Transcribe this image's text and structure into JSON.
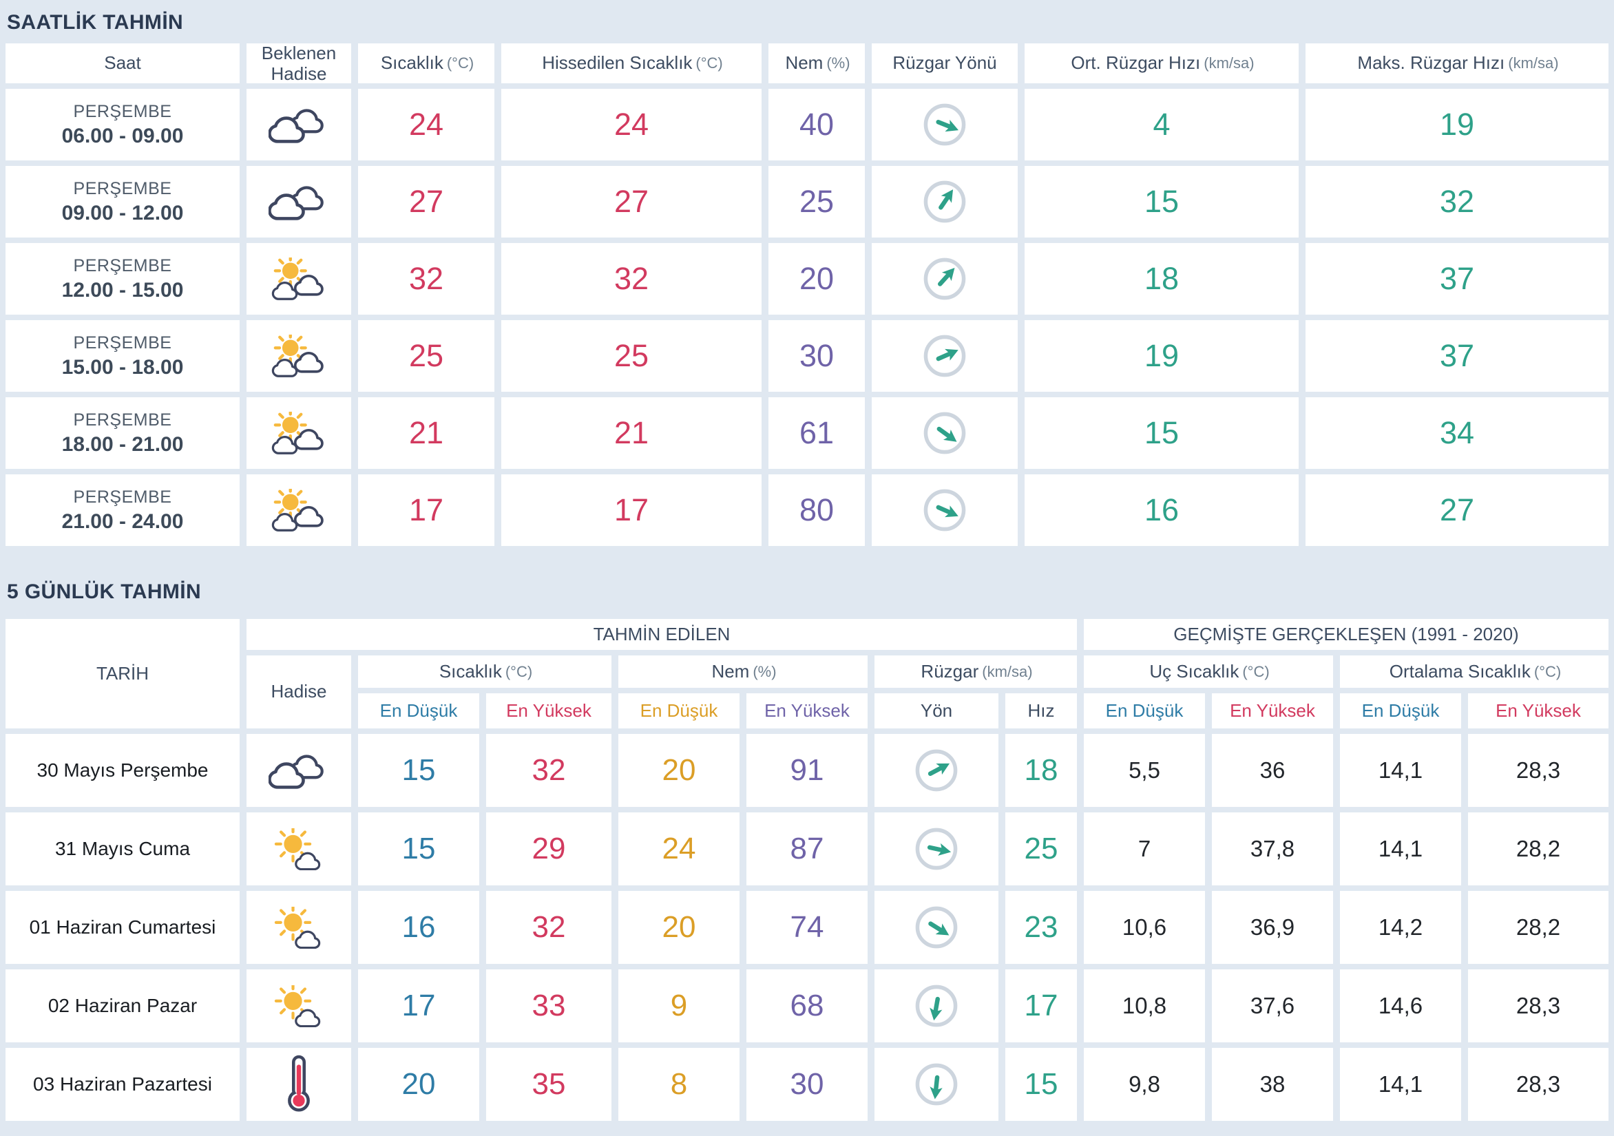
{
  "colors": {
    "background": "#e0e8f1",
    "cell": "#ffffff",
    "title_text": "#2b3a51",
    "header_text": "#3d4c61",
    "unit_text": "#70808f",
    "max_red": "#d23a5f",
    "min_blue": "#2e7ca6",
    "humidity_min_orange": "#db9e26",
    "humidity_purple": "#6f63a8",
    "wind_teal": "#2ea189",
    "icon_outline_navy": "#3e4660",
    "sun_yellow": "#f6b93d",
    "wind_circle_gray": "#cdd5de"
  },
  "hourly": {
    "title": "SAATLİK TAHMİN",
    "columns": [
      {
        "label": "Saat",
        "unit": ""
      },
      {
        "label": "Beklenen Hadise",
        "unit": ""
      },
      {
        "label": "Sıcaklık",
        "unit": "(°C)"
      },
      {
        "label": "Hissedilen Sıcaklık",
        "unit": "(°C)"
      },
      {
        "label": "Nem",
        "unit": "(%)"
      },
      {
        "label": "Rüzgar Yönü",
        "unit": ""
      },
      {
        "label": "Ort. Rüzgar Hızı",
        "unit": "(km/sa)"
      },
      {
        "label": "Maks. Rüzgar Hızı",
        "unit": "(km/sa)"
      }
    ],
    "rows": [
      {
        "day": "PERŞEMBE",
        "time": "06.00 - 09.00",
        "icon": "cloudy",
        "temp": "24",
        "feels": "24",
        "humidity": "40",
        "wind_dir_deg": 112,
        "wind_avg": "4",
        "wind_max": "19"
      },
      {
        "day": "PERŞEMBE",
        "time": "09.00 - 12.00",
        "icon": "cloudy",
        "temp": "27",
        "feels": "27",
        "humidity": "25",
        "wind_dir_deg": 34,
        "wind_avg": "15",
        "wind_max": "32"
      },
      {
        "day": "PERŞEMBE",
        "time": "12.00 - 15.00",
        "icon": "partly-cloudy",
        "temp": "32",
        "feels": "32",
        "humidity": "20",
        "wind_dir_deg": 42,
        "wind_avg": "18",
        "wind_max": "37"
      },
      {
        "day": "PERŞEMBE",
        "time": "15.00 - 18.00",
        "icon": "partly-cloudy",
        "temp": "25",
        "feels": "25",
        "humidity": "30",
        "wind_dir_deg": 66,
        "wind_avg": "19",
        "wind_max": "37"
      },
      {
        "day": "PERŞEMBE",
        "time": "18.00 - 21.00",
        "icon": "partly-cloudy",
        "temp": "21",
        "feels": "21",
        "humidity": "61",
        "wind_dir_deg": 126,
        "wind_avg": "15",
        "wind_max": "34"
      },
      {
        "day": "PERŞEMBE",
        "time": "21.00 - 24.00",
        "icon": "partly-cloudy",
        "temp": "17",
        "feels": "17",
        "humidity": "80",
        "wind_dir_deg": 114,
        "wind_avg": "16",
        "wind_max": "27"
      }
    ]
  },
  "daily": {
    "title": "5 GÜNLÜK TAHMİN",
    "header": {
      "tarih": "TARİH",
      "hadise": "Hadise",
      "tahmin_edilen": "TAHMİN EDİLEN",
      "gecmiste": "GEÇMİŞTE GERÇEKLEŞEN (1991 - 2020)",
      "sicaklik": {
        "label": "Sıcaklık",
        "unit": "(°C)"
      },
      "nem": {
        "label": "Nem",
        "unit": "(%)"
      },
      "ruzgar": {
        "label": "Rüzgar",
        "unit": "(km/sa)"
      },
      "uc_sicaklik": {
        "label": "Uç Sıcaklık",
        "unit": "(°C)"
      },
      "ortalama_sicaklik": {
        "label": "Ortalama Sıcaklık",
        "unit": "(°C)"
      },
      "en_dusuk": "En Düşük",
      "en_yuksek": "En Yüksek",
      "yon": "Yön",
      "hiz": "Hız"
    },
    "rows": [
      {
        "date": "30 Mayıs Perşembe",
        "icon": "cloudy",
        "temp_min": "15",
        "temp_max": "32",
        "hum_min": "20",
        "hum_max": "91",
        "wind_dir_deg": 62,
        "wind_speed": "18",
        "ext_min": "5,5",
        "ext_max": "36",
        "avg_min": "14,1",
        "avg_max": "28,3"
      },
      {
        "date": "31 Mayıs Cuma",
        "icon": "mostly-sunny",
        "temp_min": "15",
        "temp_max": "29",
        "hum_min": "24",
        "hum_max": "87",
        "wind_dir_deg": 102,
        "wind_speed": "25",
        "ext_min": "7",
        "ext_max": "37,8",
        "avg_min": "14,1",
        "avg_max": "28,2"
      },
      {
        "date": "01 Haziran Cumartesi",
        "icon": "mostly-sunny",
        "temp_min": "16",
        "temp_max": "32",
        "hum_min": "20",
        "hum_max": "74",
        "wind_dir_deg": 122,
        "wind_speed": "23",
        "ext_min": "10,6",
        "ext_max": "36,9",
        "avg_min": "14,2",
        "avg_max": "28,2"
      },
      {
        "date": "02 Haziran Pazar",
        "icon": "mostly-sunny",
        "temp_min": "17",
        "temp_max": "33",
        "hum_min": "9",
        "hum_max": "68",
        "wind_dir_deg": 190,
        "wind_speed": "17",
        "ext_min": "10,8",
        "ext_max": "37,6",
        "avg_min": "14,6",
        "avg_max": "28,3"
      },
      {
        "date": "03 Haziran Pazartesi",
        "icon": "hot",
        "temp_min": "20",
        "temp_max": "35",
        "hum_min": "8",
        "hum_max": "30",
        "wind_dir_deg": 186,
        "wind_speed": "15",
        "ext_min": "9,8",
        "ext_max": "38",
        "avg_min": "14,1",
        "avg_max": "28,3"
      }
    ]
  }
}
